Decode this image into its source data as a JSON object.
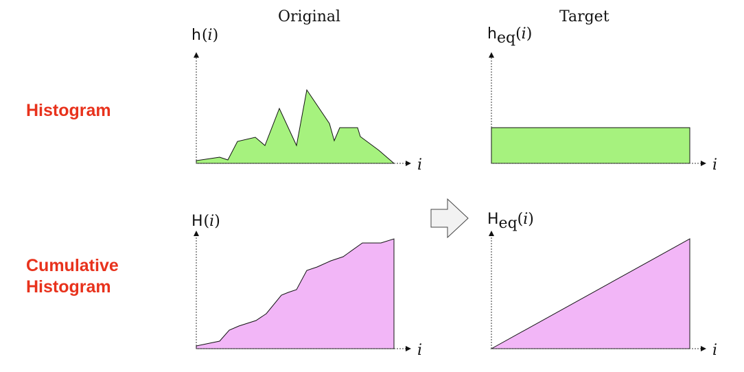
{
  "columns": {
    "original": "Original",
    "target": "Target"
  },
  "rows": {
    "histogram": "Histogram",
    "cumulative_line1": "Cumulative",
    "cumulative_line2": "Histogram"
  },
  "axes": {
    "h_fn": "h",
    "H_fn": "H",
    "eq_sub": "eq",
    "arg": "(i)",
    "i_var": "i"
  },
  "colors": {
    "histogram_fill": "#a6f27e",
    "cumulative_fill": "#f2b6f7",
    "label_red": "#e8321c",
    "arrow_fill": "#f2f2f2"
  },
  "icons": {
    "transform_arrow": "right-arrow-icon"
  }
}
